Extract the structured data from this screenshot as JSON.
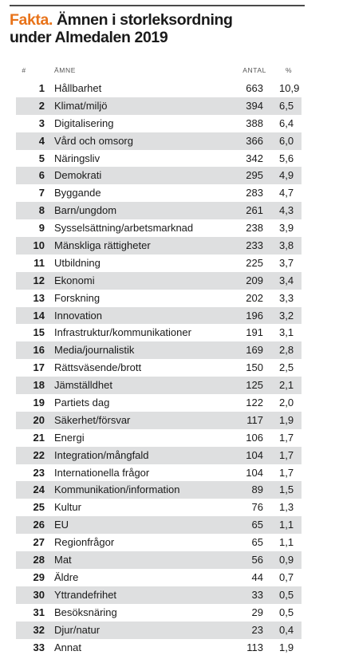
{
  "title": {
    "accent": "Fakta.",
    "line1_rest": " Ämnen i storleksordning",
    "line2": "under Almedalen 2019"
  },
  "columns": {
    "rank": "#",
    "subject": "ÄMNE",
    "count": "ANTAL",
    "pct": "%"
  },
  "rows": [
    {
      "rank": "1",
      "subject": "Hållbarhet",
      "count": "663",
      "pct": "10,9"
    },
    {
      "rank": "2",
      "subject": "Klimat/miljö",
      "count": "394",
      "pct": "6,5"
    },
    {
      "rank": "3",
      "subject": "Digitalisering",
      "count": "388",
      "pct": "6,4"
    },
    {
      "rank": "4",
      "subject": "Vård och omsorg",
      "count": "366",
      "pct": "6,0"
    },
    {
      "rank": "5",
      "subject": "Näringsliv",
      "count": "342",
      "pct": "5,6"
    },
    {
      "rank": "6",
      "subject": "Demokrati",
      "count": "295",
      "pct": "4,9"
    },
    {
      "rank": "7",
      "subject": "Byggande",
      "count": "283",
      "pct": "4,7"
    },
    {
      "rank": "8",
      "subject": "Barn/ungdom",
      "count": "261",
      "pct": "4,3"
    },
    {
      "rank": "9",
      "subject": "Sysselsättning/arbetsmarknad",
      "count": "238",
      "pct": "3,9"
    },
    {
      "rank": "10",
      "subject": "Mänskliga rättigheter",
      "count": "233",
      "pct": "3,8"
    },
    {
      "rank": "11",
      "subject": "Utbildning",
      "count": "225",
      "pct": "3,7"
    },
    {
      "rank": "12",
      "subject": "Ekonomi",
      "count": "209",
      "pct": "3,4"
    },
    {
      "rank": "13",
      "subject": "Forskning",
      "count": "202",
      "pct": "3,3"
    },
    {
      "rank": "14",
      "subject": "Innovation",
      "count": "196",
      "pct": "3,2"
    },
    {
      "rank": "15",
      "subject": "Infrastruktur/kommunikationer",
      "count": "191",
      "pct": "3,1"
    },
    {
      "rank": "16",
      "subject": "Media/journalistik",
      "count": "169",
      "pct": "2,8"
    },
    {
      "rank": "17",
      "subject": "Rättsväsende/brott",
      "count": "150",
      "pct": "2,5"
    },
    {
      "rank": "18",
      "subject": "Jämställdhet",
      "count": "125",
      "pct": "2,1"
    },
    {
      "rank": "19",
      "subject": "Partiets dag",
      "count": "122",
      "pct": "2,0"
    },
    {
      "rank": "20",
      "subject": "Säkerhet/försvar",
      "count": "117",
      "pct": "1,9"
    },
    {
      "rank": "21",
      "subject": "Energi",
      "count": "106",
      "pct": "1,7"
    },
    {
      "rank": "22",
      "subject": "Integration/mångfald",
      "count": "104",
      "pct": "1,7"
    },
    {
      "rank": "23",
      "subject": "Internationella frågor",
      "count": "104",
      "pct": "1,7"
    },
    {
      "rank": "24",
      "subject": "Kommunikation/information",
      "count": "89",
      "pct": "1,5"
    },
    {
      "rank": "25",
      "subject": "Kultur",
      "count": "76",
      "pct": "1,3"
    },
    {
      "rank": "26",
      "subject": "EU",
      "count": "65",
      "pct": "1,1"
    },
    {
      "rank": "27",
      "subject": "Regionfrågor",
      "count": "65",
      "pct": "1,1"
    },
    {
      "rank": "28",
      "subject": "Mat",
      "count": "56",
      "pct": "0,9"
    },
    {
      "rank": "29",
      "subject": "Äldre",
      "count": "44",
      "pct": "0,7"
    },
    {
      "rank": "30",
      "subject": "Yttrandefrihet",
      "count": "33",
      "pct": "0,5"
    },
    {
      "rank": "31",
      "subject": "Besöksnäring",
      "count": "29",
      "pct": "0,5"
    },
    {
      "rank": "32",
      "subject": "Djur/natur",
      "count": "23",
      "pct": "0,4"
    },
    {
      "rank": "33",
      "subject": "Annat",
      "count": "113",
      "pct": "1,9"
    }
  ],
  "colors": {
    "accent": "#e8731a",
    "row_shade": "#dedfe0",
    "rule": "#4a4a4a"
  }
}
